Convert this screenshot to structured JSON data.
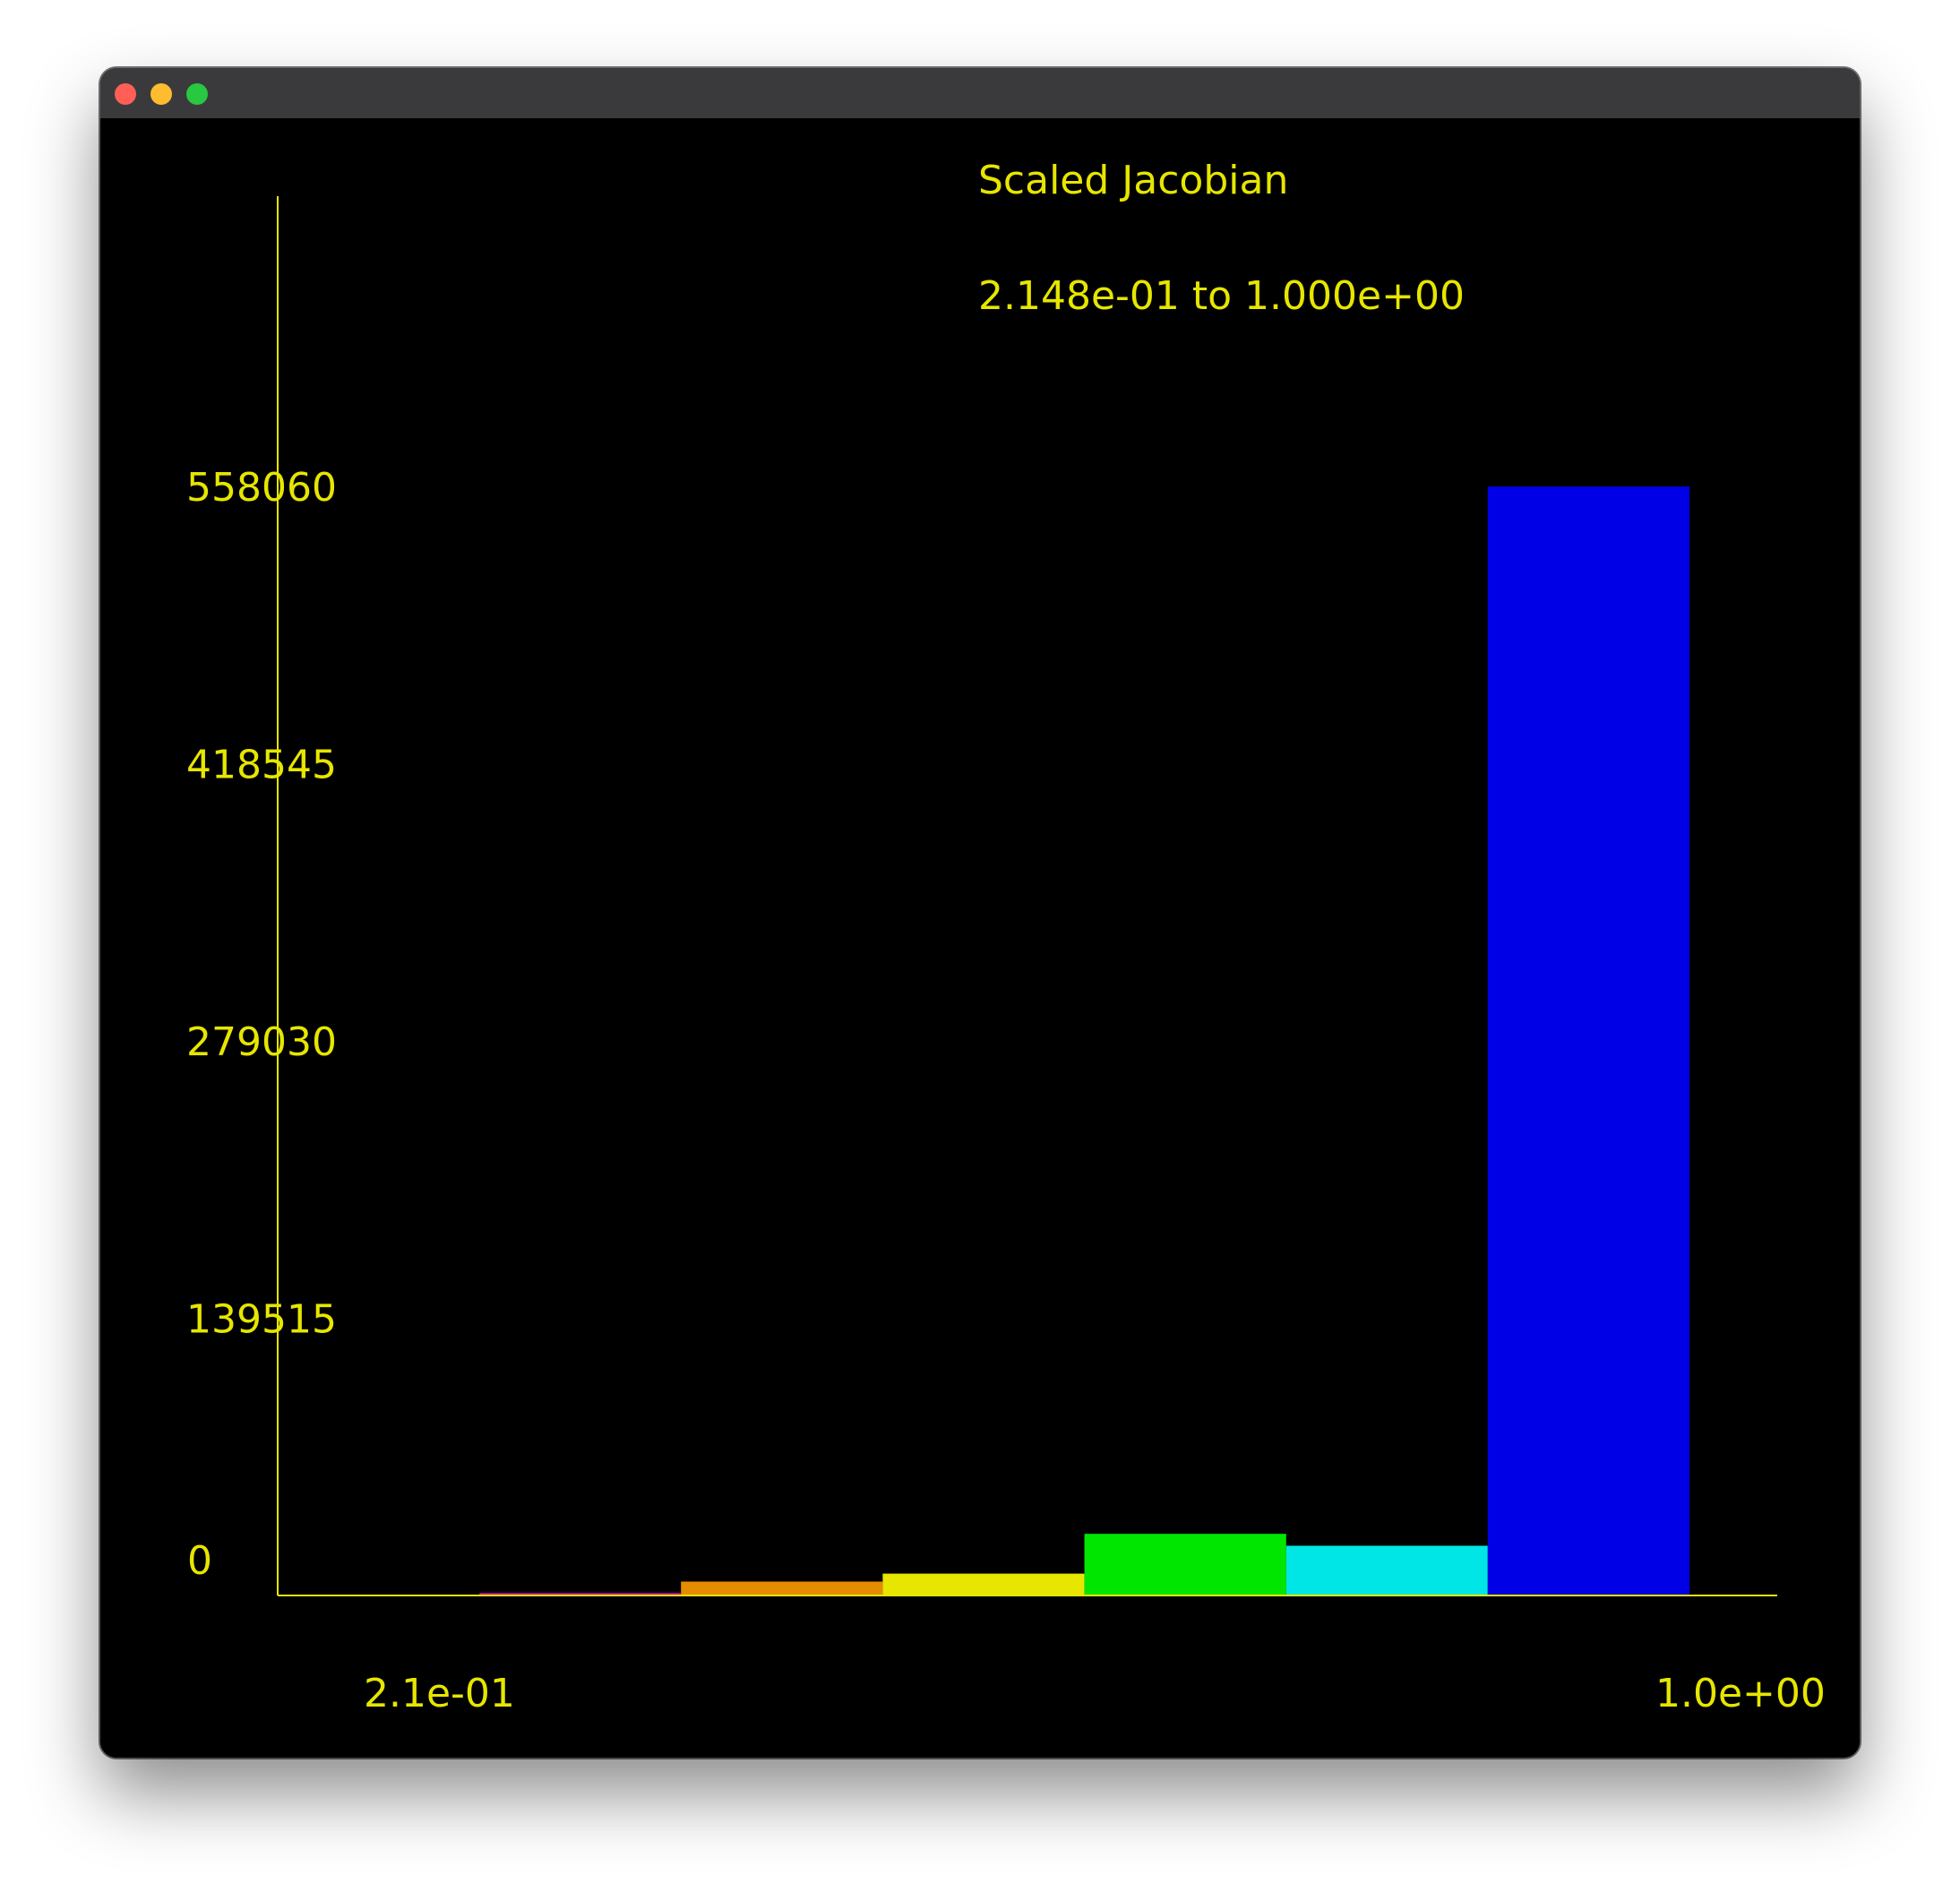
{
  "window": {
    "controls": {
      "close_icon": "close-icon",
      "minimize_icon": "minimize-icon",
      "maximize_icon": "maximize-icon"
    }
  },
  "colors": {
    "background": "#000000",
    "axis": "#e6e600",
    "text": "#e6e600",
    "titlebar": "#3a3a3c"
  },
  "chart_data": {
    "type": "bar",
    "title": "Scaled Jacobian",
    "subtitle": "2.148e-01 to 1.000e+00",
    "x_tick_labels": [
      "2.1e-01",
      "1.0e+00"
    ],
    "xlim": [
      0.2148,
      1.0
    ],
    "ylim": [
      0,
      558060
    ],
    "y_ticks": [
      0,
      139515,
      279030,
      418545,
      558060
    ],
    "bins": [
      {
        "x0": 0.2148,
        "x1": 0.327,
        "value": 0,
        "color": "#ff00ff"
      },
      {
        "x0": 0.327,
        "x1": 0.4391,
        "value": 1200,
        "color": "#e600b4"
      },
      {
        "x0": 0.4391,
        "x1": 0.5513,
        "value": 7000,
        "color": "#e68c00"
      },
      {
        "x0": 0.5513,
        "x1": 0.6635,
        "value": 11000,
        "color": "#e6e600"
      },
      {
        "x0": 0.6635,
        "x1": 0.7757,
        "value": 31000,
        "color": "#00e600"
      },
      {
        "x0": 0.7757,
        "x1": 0.8878,
        "value": 25000,
        "color": "#00e6e6"
      },
      {
        "x0": 0.8878,
        "x1": 1.0,
        "value": 558000,
        "color": "#0000e6"
      }
    ],
    "grid": false,
    "legend": "none"
  }
}
